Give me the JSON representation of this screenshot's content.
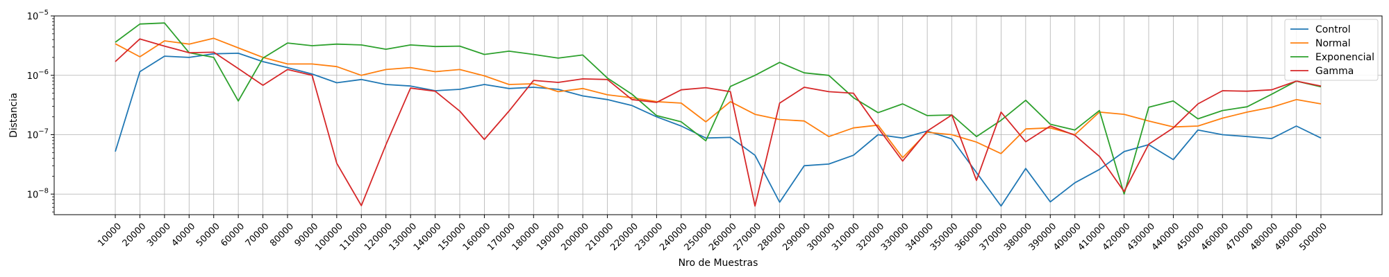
{
  "chart_data": {
    "type": "line",
    "xlabel": "Nro de Muestras",
    "ylabel": "Distancia",
    "yscale": "log",
    "ylim": [
      4.5e-09,
      1e-05
    ],
    "y_ticks": [
      {
        "value": 1e-08,
        "base": "10",
        "exp": "−8"
      },
      {
        "value": 1e-07,
        "base": "10",
        "exp": "−7"
      },
      {
        "value": 1e-06,
        "base": "10",
        "exp": "−6"
      },
      {
        "value": 1e-05,
        "base": "10",
        "exp": "−5"
      }
    ],
    "grid": true,
    "legend_position": "top-right",
    "x": [
      10000,
      20000,
      30000,
      40000,
      50000,
      60000,
      70000,
      80000,
      90000,
      100000,
      110000,
      120000,
      130000,
      140000,
      150000,
      160000,
      170000,
      180000,
      190000,
      200000,
      210000,
      220000,
      230000,
      240000,
      250000,
      260000,
      270000,
      280000,
      290000,
      300000,
      310000,
      320000,
      330000,
      340000,
      350000,
      360000,
      370000,
      380000,
      390000,
      400000,
      410000,
      420000,
      430000,
      440000,
      450000,
      460000,
      470000,
      480000,
      490000,
      500000
    ],
    "x_tick_labels": [
      "10000",
      "20000",
      "30000",
      "40000",
      "50000",
      "60000",
      "70000",
      "80000",
      "90000",
      "100000",
      "110000",
      "120000",
      "130000",
      "140000",
      "150000",
      "160000",
      "170000",
      "180000",
      "190000",
      "200000",
      "210000",
      "220000",
      "230000",
      "240000",
      "250000",
      "260000",
      "270000",
      "280000",
      "290000",
      "300000",
      "310000",
      "320000",
      "330000",
      "340000",
      "350000",
      "360000",
      "370000",
      "380000",
      "390000",
      "400000",
      "410000",
      "420000",
      "430000",
      "440000",
      "450000",
      "460000",
      "470000",
      "480000",
      "490000",
      "500000"
    ],
    "series": [
      {
        "name": "Control",
        "color": "#1f77b4",
        "values": [
          5.2e-08,
          1.15e-06,
          2.1e-06,
          2e-06,
          2.3e-06,
          2.35e-06,
          1.7e-06,
          1.35e-06,
          1.05e-06,
          7.5e-07,
          8.5e-07,
          7e-07,
          6.6e-07,
          5.5e-07,
          5.8e-07,
          7e-07,
          6e-07,
          6.3e-07,
          5.8e-07,
          4.5e-07,
          3.9e-07,
          3.1e-07,
          2e-07,
          1.4e-07,
          8.8e-08,
          9e-08,
          4.5e-08,
          7.3e-09,
          3e-08,
          3.2e-08,
          4.5e-08,
          1e-07,
          8.8e-08,
          1.15e-07,
          8.5e-08,
          2.3e-08,
          6.3e-09,
          2.7e-08,
          7.4e-09,
          1.55e-08,
          2.6e-08,
          5.2e-08,
          6.8e-08,
          3.8e-08,
          1.2e-07,
          1e-07,
          9.3e-08,
          8.6e-08,
          1.4e-07,
          8.8e-08
        ]
      },
      {
        "name": "Normal",
        "color": "#ff7f0e",
        "values": [
          3.4e-06,
          2.05e-06,
          3.8e-06,
          3.35e-06,
          4.2e-06,
          2.9e-06,
          2e-06,
          1.55e-06,
          1.55e-06,
          1.4e-06,
          1e-06,
          1.25e-06,
          1.35e-06,
          1.15e-06,
          1.25e-06,
          9.8e-07,
          7e-07,
          7.2e-07,
          5.3e-07,
          6e-07,
          4.7e-07,
          4.2e-07,
          3.6e-07,
          3.4e-07,
          1.65e-07,
          3.6e-07,
          2.2e-07,
          1.8e-07,
          1.7e-07,
          9.3e-08,
          1.3e-07,
          1.45e-07,
          4.1e-08,
          1.1e-07,
          1e-07,
          7.5e-08,
          4.8e-08,
          1.25e-07,
          1.3e-07,
          1e-07,
          2.4e-07,
          2.2e-07,
          1.7e-07,
          1.35e-07,
          1.4e-07,
          1.9e-07,
          2.4e-07,
          2.9e-07,
          3.9e-07,
          3.3e-07
        ]
      },
      {
        "name": "Exponencial",
        "color": "#2ca02c",
        "values": [
          3.6e-06,
          7.3e-06,
          7.6e-06,
          2.4e-06,
          2e-06,
          3.7e-07,
          1.95e-06,
          3.5e-06,
          3.15e-06,
          3.35e-06,
          3.25e-06,
          2.75e-06,
          3.25e-06,
          3.05e-06,
          3.1e-06,
          2.25e-06,
          2.55e-06,
          2.25e-06,
          1.95e-06,
          2.2e-06,
          9e-07,
          4.8e-07,
          2.1e-07,
          1.65e-07,
          7.9e-08,
          6.5e-07,
          1e-06,
          1.65e-06,
          1.1e-06,
          1e-06,
          4.2e-07,
          2.35e-07,
          3.3e-07,
          2.1e-07,
          2.15e-07,
          9.3e-08,
          1.75e-07,
          3.8e-07,
          1.5e-07,
          1.2e-07,
          2.55e-07,
          1e-08,
          2.9e-07,
          3.7e-07,
          1.85e-07,
          2.55e-07,
          2.95e-07,
          4.8e-07,
          8e-07,
          6.4e-07
        ]
      },
      {
        "name": "Gamma",
        "color": "#d62728",
        "values": [
          1.7e-06,
          4.1e-06,
          3.1e-06,
          2.4e-06,
          2.45e-06,
          1.3e-06,
          6.8e-07,
          1.25e-06,
          1e-06,
          3.3e-08,
          6.4e-09,
          6.8e-08,
          6.1e-07,
          5.4e-07,
          2.5e-07,
          8.3e-08,
          2.5e-07,
          8.2e-07,
          7.6e-07,
          8.7e-07,
          8.5e-07,
          3.9e-07,
          3.5e-07,
          5.7e-07,
          6.2e-07,
          5.3e-07,
          6.3e-09,
          3.4e-07,
          6.3e-07,
          5.3e-07,
          5e-07,
          1.3e-07,
          3.6e-08,
          1.15e-07,
          2.15e-07,
          1.7e-08,
          2.4e-07,
          7.6e-08,
          1.4e-07,
          9.8e-08,
          4.3e-08,
          1.1e-08,
          6.9e-08,
          1.3e-07,
          3.3e-07,
          5.5e-07,
          5.4e-07,
          5.7e-07,
          8e-07,
          6.6e-07
        ]
      }
    ]
  }
}
